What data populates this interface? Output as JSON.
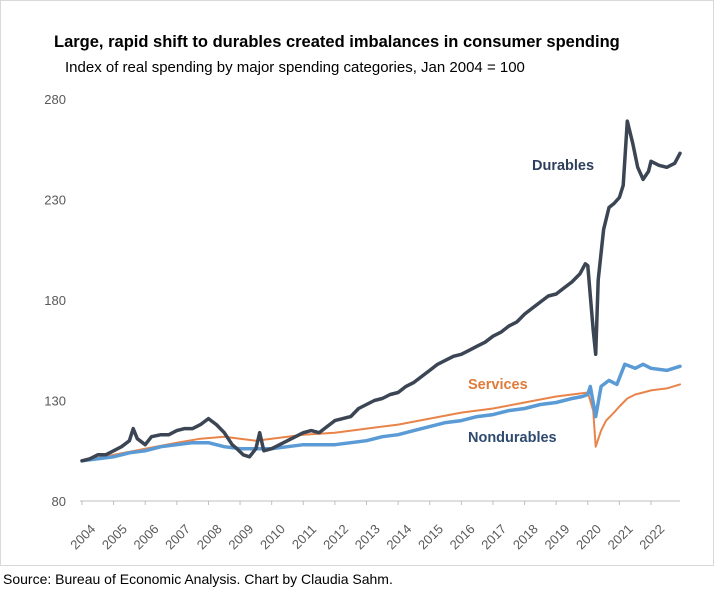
{
  "chart_data": {
    "type": "line",
    "title": "Large, rapid shift to durables created imbalances in consumer spending",
    "subtitle": "Index of real spending by major spending categories, Jan 2004 = 100",
    "source": "Source: Bureau of Economic Analysis. Chart by Claudia Sahm.",
    "xlabel": "",
    "ylabel": "",
    "ylim": [
      80,
      280
    ],
    "yticks": [
      80,
      130,
      180,
      230,
      280
    ],
    "xlim": [
      2004.0,
      2022.917
    ],
    "xticks": [
      "2004",
      "2005",
      "2006",
      "2007",
      "2008",
      "2009",
      "2010",
      "2011",
      "2012",
      "2013",
      "2014",
      "2015",
      "2016",
      "2017",
      "2018",
      "2019",
      "2020",
      "2021",
      "2022"
    ],
    "grid": false,
    "legend": "inline-labels",
    "series": [
      {
        "name": "Durables",
        "color": "#3b4554",
        "label_color": "#2e3f5c",
        "points": [
          [
            2004.0,
            100
          ],
          [
            2004.25,
            101
          ],
          [
            2004.5,
            103
          ],
          [
            2004.75,
            103
          ],
          [
            2005.0,
            105
          ],
          [
            2005.25,
            107
          ],
          [
            2005.5,
            110
          ],
          [
            2005.62,
            116
          ],
          [
            2005.75,
            111
          ],
          [
            2006.0,
            108
          ],
          [
            2006.2,
            112
          ],
          [
            2006.5,
            113
          ],
          [
            2006.75,
            113
          ],
          [
            2007.0,
            115
          ],
          [
            2007.25,
            116
          ],
          [
            2007.5,
            116
          ],
          [
            2007.75,
            118
          ],
          [
            2008.0,
            121
          ],
          [
            2008.25,
            118
          ],
          [
            2008.5,
            114
          ],
          [
            2008.75,
            108
          ],
          [
            2008.9,
            106
          ],
          [
            2009.1,
            103
          ],
          [
            2009.3,
            102
          ],
          [
            2009.5,
            106
          ],
          [
            2009.62,
            114
          ],
          [
            2009.75,
            105
          ],
          [
            2010.0,
            106
          ],
          [
            2010.25,
            108
          ],
          [
            2010.5,
            110
          ],
          [
            2010.75,
            112
          ],
          [
            2011.0,
            114
          ],
          [
            2011.25,
            115
          ],
          [
            2011.5,
            114
          ],
          [
            2011.75,
            117
          ],
          [
            2012.0,
            120
          ],
          [
            2012.25,
            121
          ],
          [
            2012.5,
            122
          ],
          [
            2012.75,
            126
          ],
          [
            2013.0,
            128
          ],
          [
            2013.25,
            130
          ],
          [
            2013.5,
            131
          ],
          [
            2013.75,
            133
          ],
          [
            2014.0,
            134
          ],
          [
            2014.25,
            137
          ],
          [
            2014.5,
            139
          ],
          [
            2014.75,
            142
          ],
          [
            2015.0,
            145
          ],
          [
            2015.25,
            148
          ],
          [
            2015.5,
            150
          ],
          [
            2015.75,
            152
          ],
          [
            2016.0,
            153
          ],
          [
            2016.25,
            155
          ],
          [
            2016.5,
            157
          ],
          [
            2016.75,
            159
          ],
          [
            2017.0,
            162
          ],
          [
            2017.25,
            164
          ],
          [
            2017.5,
            167
          ],
          [
            2017.75,
            169
          ],
          [
            2018.0,
            173
          ],
          [
            2018.25,
            176
          ],
          [
            2018.5,
            179
          ],
          [
            2018.75,
            182
          ],
          [
            2019.0,
            183
          ],
          [
            2019.25,
            186
          ],
          [
            2019.5,
            189
          ],
          [
            2019.75,
            193
          ],
          [
            2019.92,
            198
          ],
          [
            2020.0,
            197
          ],
          [
            2020.17,
            165
          ],
          [
            2020.25,
            153
          ],
          [
            2020.33,
            190
          ],
          [
            2020.5,
            215
          ],
          [
            2020.67,
            226
          ],
          [
            2020.83,
            228
          ],
          [
            2021.0,
            231
          ],
          [
            2021.12,
            237
          ],
          [
            2021.25,
            269
          ],
          [
            2021.42,
            258
          ],
          [
            2021.58,
            246
          ],
          [
            2021.75,
            240
          ],
          [
            2021.92,
            244
          ],
          [
            2022.0,
            249
          ],
          [
            2022.25,
            247
          ],
          [
            2022.5,
            246
          ],
          [
            2022.75,
            248
          ],
          [
            2022.917,
            253
          ]
        ]
      },
      {
        "name": "Services",
        "color": "#e8844a",
        "label_color": "#e07b39",
        "points": [
          [
            2004.0,
            100
          ],
          [
            2005.0,
            103
          ],
          [
            2006.0,
            106
          ],
          [
            2007.0,
            109
          ],
          [
            2007.75,
            111
          ],
          [
            2008.5,
            112
          ],
          [
            2009.0,
            111
          ],
          [
            2009.5,
            110
          ],
          [
            2010.0,
            111
          ],
          [
            2011.0,
            113
          ],
          [
            2012.0,
            114
          ],
          [
            2013.0,
            116
          ],
          [
            2014.0,
            118
          ],
          [
            2015.0,
            121
          ],
          [
            2016.0,
            124
          ],
          [
            2017.0,
            126
          ],
          [
            2018.0,
            129
          ],
          [
            2019.0,
            132
          ],
          [
            2020.0,
            134
          ],
          [
            2020.17,
            125
          ],
          [
            2020.25,
            107
          ],
          [
            2020.42,
            115
          ],
          [
            2020.58,
            120
          ],
          [
            2020.83,
            124
          ],
          [
            2021.0,
            127
          ],
          [
            2021.25,
            131
          ],
          [
            2021.5,
            133
          ],
          [
            2021.75,
            134
          ],
          [
            2022.0,
            135
          ],
          [
            2022.5,
            136
          ],
          [
            2022.917,
            138
          ]
        ]
      },
      {
        "name": "Nondurables",
        "color": "#5b9bd5",
        "label_color": "#2e4a70",
        "points": [
          [
            2004.0,
            100
          ],
          [
            2004.5,
            101
          ],
          [
            2005.0,
            102
          ],
          [
            2005.5,
            104
          ],
          [
            2006.0,
            105
          ],
          [
            2006.5,
            107
          ],
          [
            2007.0,
            108
          ],
          [
            2007.5,
            109
          ],
          [
            2008.0,
            109
          ],
          [
            2008.5,
            107
          ],
          [
            2009.0,
            106
          ],
          [
            2009.5,
            106
          ],
          [
            2010.0,
            106
          ],
          [
            2010.5,
            107
          ],
          [
            2011.0,
            108
          ],
          [
            2011.5,
            108
          ],
          [
            2012.0,
            108
          ],
          [
            2012.5,
            109
          ],
          [
            2013.0,
            110
          ],
          [
            2013.5,
            112
          ],
          [
            2014.0,
            113
          ],
          [
            2014.5,
            115
          ],
          [
            2015.0,
            117
          ],
          [
            2015.5,
            119
          ],
          [
            2016.0,
            120
          ],
          [
            2016.5,
            122
          ],
          [
            2017.0,
            123
          ],
          [
            2017.5,
            125
          ],
          [
            2018.0,
            126
          ],
          [
            2018.5,
            128
          ],
          [
            2019.0,
            129
          ],
          [
            2019.5,
            131
          ],
          [
            2019.83,
            132
          ],
          [
            2020.0,
            133
          ],
          [
            2020.08,
            137
          ],
          [
            2020.25,
            122
          ],
          [
            2020.42,
            137
          ],
          [
            2020.67,
            140
          ],
          [
            2020.92,
            138
          ],
          [
            2021.17,
            148
          ],
          [
            2021.5,
            146
          ],
          [
            2021.75,
            148
          ],
          [
            2022.0,
            146
          ],
          [
            2022.5,
            145
          ],
          [
            2022.917,
            147
          ]
        ]
      }
    ]
  }
}
